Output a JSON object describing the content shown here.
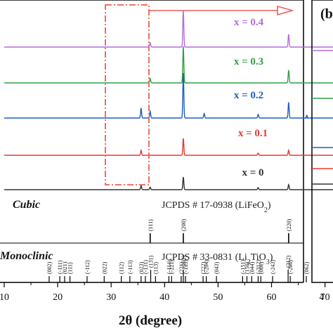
{
  "chart_data": {
    "type": "line",
    "xlabel": "2θ (degree)",
    "xlim": [
      10,
      75
    ],
    "xticks": [
      10,
      20,
      30,
      40,
      50,
      60,
      70
    ],
    "panel_label": "(b",
    "right_tick_label": "4",
    "series": [
      {
        "name": "x = 0.4",
        "color": "#b36ae2",
        "peaks": [
          [
            37.3,
            0.12
          ],
          [
            43.5,
            1.0
          ],
          [
            63.2,
            0.35
          ]
        ]
      },
      {
        "name": "x = 0.3",
        "color": "#2ea043",
        "peaks": [
          [
            37.3,
            0.12
          ],
          [
            43.5,
            1.0
          ],
          [
            63.2,
            0.35
          ]
        ]
      },
      {
        "name": "x = 0.2",
        "color": "#1f5fbf",
        "peaks": [
          [
            35.6,
            0.22
          ],
          [
            37.3,
            0.15
          ],
          [
            43.5,
            1.0
          ],
          [
            47.4,
            0.1
          ],
          [
            57.5,
            0.08
          ],
          [
            63.2,
            0.35
          ],
          [
            66.6,
            0.06
          ]
        ]
      },
      {
        "name": "x = 0.1",
        "color": "#e53935",
        "peaks": [
          [
            35.6,
            0.12
          ],
          [
            43.5,
            0.4
          ],
          [
            57.5,
            0.05
          ],
          [
            63.2,
            0.12
          ]
        ]
      },
      {
        "name": "x = 0",
        "color": "#333333",
        "peaks": [
          [
            35.6,
            0.1
          ],
          [
            37.3,
            0.06
          ],
          [
            43.5,
            0.3
          ],
          [
            57.5,
            0.05
          ],
          [
            63.2,
            0.12
          ]
        ]
      }
    ],
    "references": [
      {
        "phase": "Cubic",
        "card": "JCPDS # 17-0938 (LiFeO",
        "card_sub": "2",
        "card_end": ")",
        "peaks": [
          {
            "x": 37.3,
            "label": "(111)"
          },
          {
            "x": 43.5,
            "label": "(200)"
          },
          {
            "x": 63.2,
            "label": "(220)"
          }
        ]
      },
      {
        "phase": "Monoclinic",
        "card": "JCPDS # 33-0831 (Li",
        "card_sub": "2",
        "card_mid": "TiO",
        "card_sub2": "3",
        "card_end": ")",
        "peaks": [
          {
            "x": 18.4,
            "label": "(002)"
          },
          {
            "x": 20.4,
            "label": "(-111)"
          },
          {
            "x": 21.3,
            "label": "(021)"
          },
          {
            "x": 22.3,
            "label": "(111)"
          },
          {
            "x": 25.5,
            "label": "(-112)"
          },
          {
            "x": 28.7,
            "label": "(022)"
          },
          {
            "x": 31.9,
            "label": "(112)"
          },
          {
            "x": 33.5,
            "label": "(-113)"
          },
          {
            "x": 35.6,
            "label": "(023)"
          },
          {
            "x": 36.4,
            "label": "(-131)"
          },
          {
            "x": 37.4,
            "label": "(131)"
          },
          {
            "x": 38.3,
            "label": "(113)"
          },
          {
            "x": 40.8,
            "label": "(-114)"
          },
          {
            "x": 41.3,
            "label": "(-221)"
          },
          {
            "x": 43.1,
            "label": "(221)"
          },
          {
            "x": 43.5,
            "label": "(202)"
          },
          {
            "x": 43.9,
            "label": "(-133)"
          },
          {
            "x": 47.2,
            "label": "(222)"
          },
          {
            "x": 47.8,
            "label": "(-204)"
          },
          {
            "x": 49.7,
            "label": "(043)"
          },
          {
            "x": 54.6,
            "label": "(-151)"
          },
          {
            "x": 55.4,
            "label": "(150)"
          },
          {
            "x": 56.3,
            "label": "(044)"
          },
          {
            "x": 57.5,
            "label": "(-312)"
          },
          {
            "x": 58.0,
            "label": "(006)"
          },
          {
            "x": 60.2,
            "label": "(-243)"
          },
          {
            "x": 63.1,
            "label": "(312)"
          },
          {
            "x": 63.5,
            "label": "(-206)"
          },
          {
            "x": 66.5,
            "label": "(062)"
          }
        ]
      }
    ]
  }
}
